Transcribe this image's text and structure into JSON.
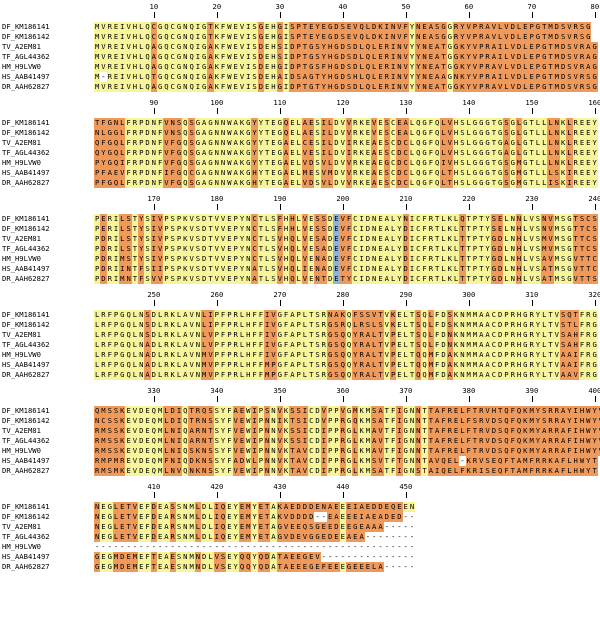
{
  "names": [
    "DF_KM186141",
    "DF_KM186142",
    "TV_A2EM81",
    "TF_AGL44362",
    "HM_H9LVW0",
    "HS_AAB41497",
    "DR_AAH62827"
  ],
  "blocks": [
    {
      "ticks": [
        10,
        20,
        30,
        40,
        50,
        60,
        70,
        80
      ],
      "rows": [
        "MVREIVHLQCGQCGNQIGTKFWEVISGEHGISPTEYEGDSEVQLDKINVFYNEASGGRYVPRAVLVDLEPGTMDSVRSG",
        "MVREIVHLQCGQCGNQIGTKFWEVISGEHGISPTEYEGDSEVQLDKINVFYNEASGGRYVPRAVLVDLEPGTMDSVRSG",
        "MVREIVHLQAGQCGNQIGAKFWEVISDEHSIDPTGSYHGDSDLQLERINVYYNEATGGKYVPRAILVDLEPGTMDSVRAG",
        "MVREIVHLQAGQCGNQIGAKFWEVISDEHSIDPTGSYHGDSDLQLERINVYYNEATGGKYVPRAILVDLEPGTMDSVRAG",
        "MVREIVHLQAGQCGNQIGAKFWEVISDEHGIDPTGSFHGDSDLQLERINVYYNEATGGKYVPRAVLVDLEPGTMDSVRAG",
        "M-REIVHLQTGQCGNQIGAKFWEVISDEHAIDSAGTYHGDSHLQLERINVYYNEAAGNKYVPRAILVDLEPGTMDSVRSG",
        "MVREIVHLQAGQCGNQIGAKFWEVISDEHGIDPTGTYHGDSDLQLERINVYYNEATGGKYVPRAVLVDLEPGTMDSVRSG"
      ],
      "marks": [
        "..................................y.................................y...y........",
        "..................................y.................................y...y........",
        "..................................y.................................y...y........",
        "..................................y.................................y...y........",
        "..................................y.................................y...y........",
        "..................................y.................................y...y........",
        "..................................y.................................y...y........"
      ]
    },
    {
      "ticks": [
        90,
        100,
        110,
        120,
        130,
        140,
        150,
        160
      ],
      "rows": [
        "TFGNLFRPDNFVNSQSGAGNNWAKGYYTEGQELAESILDVVRKEVESCEALQGFQLVHSLGGGTGSGLGTLLLNKLREEY",
        "NLGGLFRPDNFVNSQSGAGNNWAKGYYTEGQELAESILDVVRKEVESCEALQGFQLVHSLGGGTGSGLGTLLLNKLREEY",
        "QFGQLFRPDNFVFGQSGAGNNWAKGYYTEGAELCESILDVIRKEAESCDCLQGFQLVHSLGGGTGAGLGTLLLNKLREEY",
        "QYGQLFRPDNFVFGQSGAGNNWAKGYYTEGAELVESILDVIRKEAESCDCLQGFQLVHSLGGGTGAGLGTLLLNKLREEY",
        "PYGQIFRPDNFVFGQSGAGNNWAKGYYTEGAELVDSVLDVVRKEAEGCDCLQGFQIVHSLGGGTGSGMGTLLLNKLREEY",
        "PFAEVFRPDNFIFGQCGAGNNWAKGHYTEGAELMESVMDVVRKEAESCDCLQGFQLTHSLGGGTGSGMGTLLLSKIREEY",
        "PFGQLFRPDNFVFGQSGAGNNWAKGHYTEGAELVDSVLDVVRKEAESCDCLQGFQLTHSLGGGTGSGMGTLLISKIREEY"
      ],
      "marks": [
        "................................................................................",
        "................................................................................",
        "................................................................................",
        "................................................................................",
        "................................................................................",
        "................................................................................",
        "................................................................................"
      ]
    },
    {
      "ticks": [
        170,
        180,
        190,
        200,
        210,
        220,
        230,
        240
      ],
      "rows": [
        "PERILSTYSIVPSPKVSDTVVEPYNCTLSFHHLVESSDEVFCIDNEALYNICFRTLKLQTPTYSELNNLVSNVMSGTSCS",
        "PERILSTYSIVPSPKVSDTVVEPYNCTLSFHHLVESSDEVFCIDNEALYDICFRTLKLTTPTYSELNHLVSNVMSGTTCS",
        "PDRILSTYSIVPSPKVSDTVVEPYNCTLSVHQLVESADEVFCIDNEALYDICFRTLKLTTPTYGDLNHLVSMVMSGTTCS",
        "PDRILSTYSIVPSPKVSDTVVEPYNCTLSVHQLVESADEVFCIDNEALYDICFRTLKLTTPTYGDLNHLVSMVMSGTTCS",
        "PDRIMSTYSIVPSPKVSDTVVEPYNCTLSVHQLVENADEVFCIDNEALYDICFRTLKLTTPTYGDLNHLVSAVMSGVTTC",
        "PDRIINTFSIIPSPKVSDTVVEPYNATLSVHQLIENADEVFCIDNEALYDICFRTLKLTTPTYGDLNHLVSATMSGVTTC",
        "PDRIMNTFSVVPSPKVSDTVVEPYNATLSVHQLVENTDETYCIDNEALYDICFRTLKLTTPTYGDLNHLVSATMSGVTTS"
      ],
      "marks": [
        "......................................b.........................................",
        "......................................b.........................................",
        "......................................b.........................................",
        "......................................b.........................................",
        "......................................b.........................................",
        "......................................b.........................................",
        "......................................b........................................."
      ]
    },
    {
      "ticks": [
        250,
        260,
        270,
        280,
        290,
        300,
        310,
        320
      ],
      "rows": [
        "LRFPGQLNSDLRKLAVNLIPFPRLHFFIVGFAPLTSRNAKQFSSVTVKELTSQLFDSKNMMAACDPRHGRYLTVSQTFRG",
        "LRFPGQLNSDLRKLAVNLIPFPRLHFFIVGFAPLTSRGSRQLRSLSVKELTSQLFDSKNMMAACDPRHGRYLTVSTLFRG",
        "LRFPGQLNSDLRKLAVNLVPFPRLHFFIVGFAPLTSRGSQQYRALTVPELTSQLFDNKNMMAACDPRHGRYLTVSAHFRG",
        "LRFPGQLNADLRKLAVNLVPFPRLHFFIVGFAPLTSRGSQQYRALTVPELTSQLFDNKNMMAACDPRHGRYLTVSAHFRG",
        "LRFPGQLNADLRKLAVNMVPFPRLHFFIVGFAPLTSRGSQQYRALTVPELTQQMFDAKNMMAACDPRHGRYLTVAAIFRG",
        "LRFPGQLNADLRKLAVNMVPFPRLHFFMPGFAPLTSRGSQQYRALTVPELTQQMFDAKNMMAACDPRHGRYLTVAAIFRG",
        "LRFPGQLNADLRKLAVNMVPFPRLHFFMPGFAPLTSRGSQQYRALTVPELTQQMFDAKNMMAACDPRHGRYLTVAAVFRG"
      ],
      "marks": [
        "................................................................................",
        "................................................................................",
        "................................................................................",
        "................................................................................",
        "................................................................................",
        "................................................................................",
        "................................................................................"
      ]
    },
    {
      "ticks": [
        330,
        340,
        350,
        360,
        370,
        380,
        390,
        400
      ],
      "rows": [
        "QMSSKEVDEQMLDIQTRQSSYFAEWIPSNVKSSICDVPPVGMKMSATFIGNNTTAFRELFTRVHTQFQKMYSRRAYIHWYV",
        "NCSSKEVDEQMLDIQTRNSSYFVEWIPNNIKTSICDVPPRGQKMSATFIGNNTTAFRELFSRVDSQFQKMYSRRAYIHWYV",
        "RMSSKEVDEQMLNIQARNTSYFVEWIPNNVKSSICDIPPRGLKMAVTFIGNNTTAFRELFTRVDSQFQKMYARRAFIHWYV",
        "RMSSKEVDEQMLNIQARNTSYFVEWIPNNVKSSICDIPPRGLKMAVTFIGNNTTAFRELFTRVDSQFQKMYARRAFIHWYV",
        "RMSSKEVDEQMLNIQSKNSSYFVEWIPNNVKTAVCDIPPRGLKMAVTFIGNNTTAFRELFTRVDSQFQKMYARRAFIHWYV",
        "RMPMREVDEQMFNIQDKNSSYFADWLPNNVKTAVCDIPPRGLKMSVTFTGNNTAVQEL-KRVSEQFTAMFRRKAFLHWYT",
        "RMSMKEVDEQMLNVQNKNSSYFVEWIPNNVKTAVCDIPPRGLKMSATFIGNSTAIQELFKRISEQFTAMFRRKAFLHWYT"
      ],
      "marks": [
        "................................................................................",
        "................................................................................",
        "................................................................................",
        "................................................................................",
        "................................................................................",
        "................................................................................",
        "................................................................................"
      ]
    },
    {
      "ticks": [
        410,
        420,
        430,
        440,
        450
      ],
      "rows": [
        "NEGLETVEFDEASSNMLDLIQEYEMYETAKAEDDDENAEEEIAEDDEQEEN",
        "NEGLETVEFDEARSNMLDLIQEYEMYETAKVDDDD--EAEEEIAEADED--",
        "NEGLETVEFDEARSNMLDLIQEYEMYETAGVEEQSGEEDEEGEAAA-----",
        "NEGLETVEFDEARSNMLDLIQEYEMYETAGVDEVGGEDEEAEA--------",
        "---------------------------------------------------",
        "GEGMDEMEFTEAESNMNDLVSEYQQYQDATAEEGEV---------------",
        "GEGMDEMEFTEAESNMNDLVSEYQQYQDATAEEEGEFEEEGEEELA-----"
      ],
      "marks": [
        "...................................................",
        "...................................................",
        "...................................................",
        "...................................................",
        "...................................................",
        "...................................................",
        "..................................................."
      ]
    }
  ],
  "palette": {
    "identical": "#f6f59a",
    "variable": "#ef9a5b",
    "highlight": "#8fb3dd"
  }
}
